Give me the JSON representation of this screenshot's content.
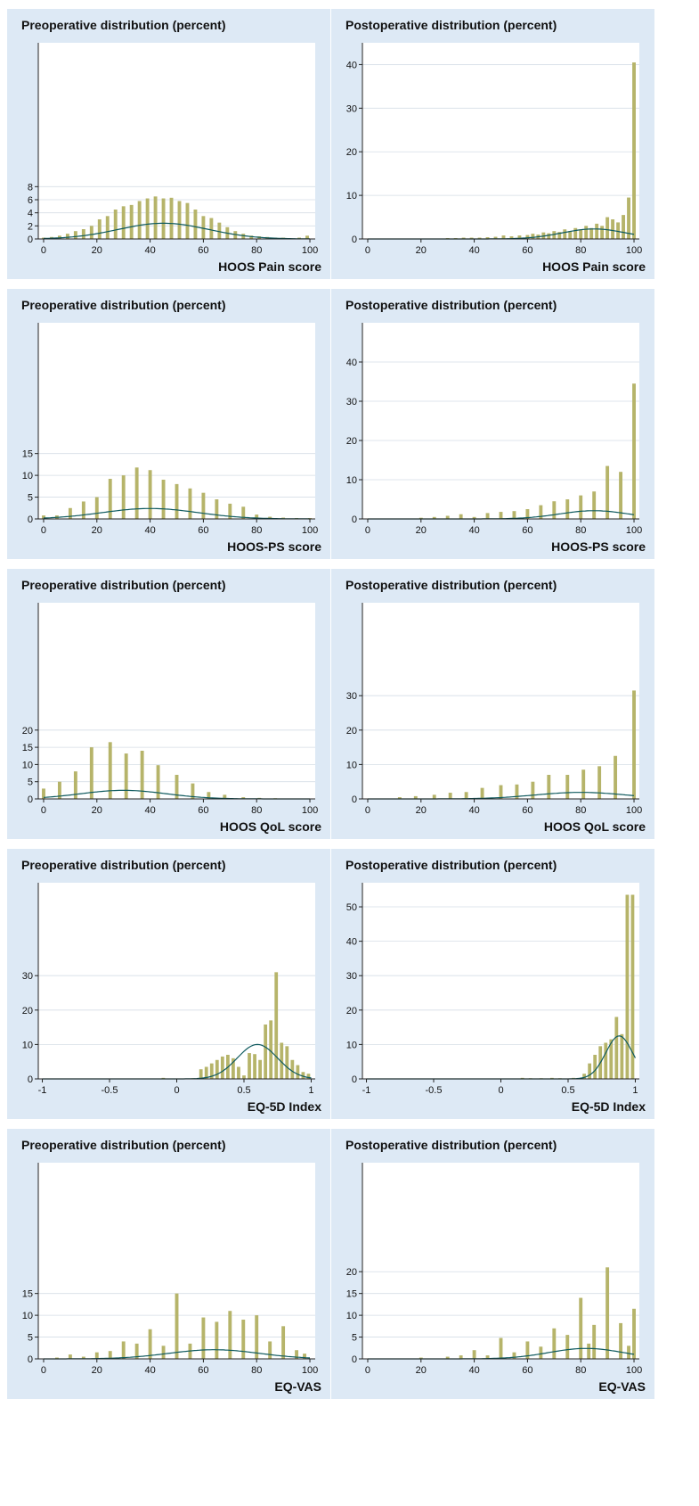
{
  "chart_data": [
    {
      "type": "bar",
      "title": "Preoperative distribution (percent)",
      "xlabel": "HOOS Pain score",
      "ylabel": "",
      "xlim": [
        -2,
        102
      ],
      "ylim": [
        0,
        30
      ],
      "yticks": [
        0,
        2,
        4,
        6,
        8
      ],
      "xticks": [
        0,
        20,
        40,
        60,
        80,
        100
      ],
      "bar_width": 1.3,
      "grid": true,
      "x": [
        0,
        3,
        6,
        9,
        12,
        15,
        18,
        21,
        24,
        27,
        30,
        33,
        36,
        39,
        42,
        45,
        48,
        51,
        54,
        57,
        60,
        63,
        66,
        69,
        72,
        75,
        78,
        81,
        84,
        87,
        90,
        93,
        96,
        99
      ],
      "values": [
        0.2,
        0.3,
        0.5,
        0.8,
        1.2,
        1.5,
        2.0,
        3.0,
        3.5,
        4.5,
        5.0,
        5.2,
        5.8,
        6.2,
        6.5,
        6.2,
        6.3,
        5.8,
        5.5,
        4.5,
        3.5,
        3.2,
        2.5,
        1.8,
        1.2,
        0.8,
        0.5,
        0.4,
        0.3,
        0.2,
        0.2,
        0.1,
        0.2,
        0.5
      ],
      "curve": {
        "type": "normal",
        "mean": 45,
        "sd": 17,
        "peak": 2.4,
        "color": "#0f5a5e"
      }
    },
    {
      "type": "bar",
      "title": "Postoperative distribution (percent)",
      "xlabel": "HOOS Pain score",
      "ylabel": "",
      "xlim": [
        -2,
        102
      ],
      "ylim": [
        0,
        45
      ],
      "yticks": [
        0,
        10,
        20,
        30,
        40
      ],
      "xticks": [
        0,
        20,
        40,
        60,
        80,
        100
      ],
      "bar_width": 1.3,
      "grid": true,
      "x": [
        30,
        33,
        36,
        39,
        42,
        45,
        48,
        51,
        54,
        57,
        60,
        62,
        64,
        66,
        68,
        70,
        72,
        74,
        76,
        78,
        80,
        82,
        84,
        86,
        88,
        90,
        92,
        94,
        96,
        98,
        100
      ],
      "values": [
        0.2,
        0.2,
        0.3,
        0.3,
        0.3,
        0.4,
        0.5,
        0.8,
        0.6,
        0.8,
        0.9,
        1.2,
        1.0,
        1.5,
        1.3,
        1.8,
        1.6,
        2.2,
        1.8,
        2.5,
        2.2,
        3.0,
        2.5,
        3.5,
        3.0,
        5.0,
        4.5,
        3.8,
        5.5,
        9.5,
        40.5
      ],
      "curve": {
        "type": "normal",
        "mean": 85,
        "sd": 12,
        "peak": 2.3,
        "color": "#0f5a5e"
      }
    },
    {
      "type": "bar",
      "title": "Preoperative distribution (percent)",
      "xlabel": "HOOS-PS score",
      "ylabel": "",
      "xlim": [
        -2,
        102
      ],
      "ylim": [
        0,
        45
      ],
      "yticks": [
        0,
        5,
        10,
        15
      ],
      "xticks": [
        0,
        20,
        40,
        60,
        80,
        100
      ],
      "bar_width": 1.3,
      "grid": true,
      "x": [
        0,
        5,
        10,
        15,
        20,
        25,
        30,
        35,
        40,
        45,
        50,
        55,
        60,
        65,
        70,
        75,
        80,
        85,
        90,
        95,
        100
      ],
      "values": [
        0.8,
        0.8,
        2.5,
        4.0,
        5.0,
        9.2,
        10.0,
        11.8,
        11.2,
        9.0,
        8.0,
        7.0,
        6.0,
        4.5,
        3.5,
        2.8,
        1.0,
        0.5,
        0.3,
        0.2,
        0.2
      ],
      "curve": {
        "type": "normal",
        "mean": 40,
        "sd": 18,
        "peak": 2.4,
        "color": "#0f5a5e"
      }
    },
    {
      "type": "bar",
      "title": "Postoperative distribution (percent)",
      "xlabel": "HOOS-PS score",
      "ylabel": "",
      "xlim": [
        -2,
        102
      ],
      "ylim": [
        0,
        50
      ],
      "yticks": [
        0,
        10,
        20,
        30,
        40
      ],
      "xticks": [
        0,
        20,
        40,
        60,
        80,
        100
      ],
      "bar_width": 1.3,
      "grid": true,
      "x": [
        20,
        25,
        30,
        35,
        40,
        45,
        50,
        55,
        60,
        65,
        70,
        75,
        80,
        85,
        90,
        95,
        100
      ],
      "values": [
        0.3,
        0.5,
        0.8,
        1.2,
        0.5,
        1.5,
        1.8,
        2.0,
        2.5,
        3.5,
        4.5,
        5.0,
        6.0,
        7.0,
        13.5,
        12.0,
        34.5
      ],
      "curve": {
        "type": "normal",
        "mean": 85,
        "sd": 13,
        "peak": 2.1,
        "color": "#0f5a5e"
      }
    },
    {
      "type": "bar",
      "title": "Preoperative distribution (percent)",
      "xlabel": "HOOS QoL score",
      "ylabel": "",
      "xlim": [
        -2,
        102
      ],
      "ylim": [
        0,
        57
      ],
      "yticks": [
        0,
        5,
        10,
        15,
        20
      ],
      "xticks": [
        0,
        20,
        40,
        60,
        80,
        100
      ],
      "bar_width": 1.3,
      "grid": true,
      "x": [
        0,
        6,
        12,
        18,
        25,
        31,
        37,
        43,
        50,
        56,
        62,
        68,
        75,
        81,
        87,
        93,
        100
      ],
      "values": [
        3.0,
        5.0,
        8.0,
        15.0,
        16.5,
        13.2,
        14.0,
        9.8,
        7.0,
        4.5,
        2.0,
        1.2,
        0.5,
        0.3,
        0.2,
        0.1,
        0.1
      ],
      "curve": {
        "type": "normal",
        "mean": 30,
        "sd": 16,
        "peak": 2.5,
        "color": "#0f5a5e"
      }
    },
    {
      "type": "bar",
      "title": "Postoperative distribution (percent)",
      "xlabel": "HOOS QoL score",
      "ylabel": "",
      "xlim": [
        -2,
        102
      ],
      "ylim": [
        0,
        57
      ],
      "yticks": [
        0,
        10,
        20,
        30
      ],
      "xticks": [
        0,
        20,
        40,
        60,
        80,
        100
      ],
      "bar_width": 1.3,
      "grid": true,
      "x": [
        12,
        18,
        25,
        31,
        37,
        43,
        50,
        56,
        62,
        68,
        75,
        81,
        87,
        93,
        100
      ],
      "values": [
        0.5,
        0.8,
        1.2,
        1.8,
        2.0,
        3.2,
        4.0,
        4.2,
        5.0,
        7.0,
        7.0,
        8.5,
        9.5,
        12.5,
        31.5
      ],
      "curve": {
        "type": "normal",
        "mean": 80,
        "sd": 17,
        "peak": 1.9,
        "color": "#0f5a5e"
      }
    },
    {
      "type": "bar",
      "title": "Preoperative distribution (percent)",
      "xlabel": "EQ-5D Index",
      "ylabel": "",
      "xlim": [
        -1.03,
        1.03
      ],
      "ylim": [
        0,
        57
      ],
      "yticks": [
        0,
        10,
        20,
        30
      ],
      "xticks": [
        -1,
        -0.5,
        0,
        0.5,
        1
      ],
      "xticklabels": [
        "-1",
        "-0.5",
        "0",
        "0.5",
        "1"
      ],
      "bar_width": 0.025,
      "bar_step": 0.025,
      "grid": true,
      "x": [
        -0.1,
        0.12,
        0.18,
        0.22,
        0.26,
        0.3,
        0.34,
        0.38,
        0.42,
        0.46,
        0.5,
        0.54,
        0.58,
        0.62,
        0.66,
        0.7,
        0.74,
        0.78,
        0.82,
        0.86,
        0.9,
        0.94,
        0.98
      ],
      "values": [
        0.3,
        0.2,
        2.8,
        3.5,
        4.5,
        5.5,
        6.5,
        7.0,
        6.0,
        3.5,
        1.0,
        7.5,
        7.2,
        5.5,
        15.8,
        17.0,
        31.0,
        10.5,
        9.5,
        5.5,
        4.0,
        2.0,
        1.5
      ],
      "curve": {
        "type": "normal",
        "mean": 0.6,
        "sd": 0.15,
        "peak": 10.0,
        "color": "#0f5a5e"
      }
    },
    {
      "type": "bar",
      "title": "Postoperative distribution (percent)",
      "xlabel": "EQ-5D Index",
      "ylabel": "",
      "xlim": [
        -1.03,
        1.03
      ],
      "ylim": [
        0,
        57
      ],
      "yticks": [
        0,
        10,
        20,
        30,
        40,
        50
      ],
      "xticks": [
        -1,
        -0.5,
        0,
        0.5,
        1
      ],
      "xticklabels": [
        "-1",
        "-0.5",
        "0",
        "0.5",
        "1"
      ],
      "bar_width": 0.025,
      "bar_step": 0.025,
      "grid": true,
      "x": [
        0.16,
        0.22,
        0.3,
        0.38,
        0.44,
        0.54,
        0.62,
        0.66,
        0.7,
        0.74,
        0.78,
        0.82,
        0.86,
        0.9,
        0.94,
        0.98
      ],
      "values": [
        0.3,
        0.2,
        0.2,
        0.3,
        0.2,
        0.3,
        1.5,
        4.5,
        7.0,
        9.5,
        10.5,
        11.5,
        18.0,
        13.0,
        53.5,
        53.5
      ],
      "curve": {
        "type": "normal",
        "mean": 0.88,
        "sd": 0.1,
        "peak": 12.5,
        "color": "#0f5a5e"
      }
    },
    {
      "type": "bar",
      "title": "Preoperative distribution (percent)",
      "xlabel": "EQ-VAS",
      "ylabel": "",
      "xlim": [
        -2,
        102
      ],
      "ylim": [
        0,
        45
      ],
      "yticks": [
        0,
        5,
        10,
        15
      ],
      "xticks": [
        0,
        20,
        40,
        60,
        80,
        100
      ],
      "bar_width": 1.3,
      "grid": true,
      "x": [
        5,
        10,
        15,
        20,
        25,
        30,
        35,
        40,
        45,
        50,
        55,
        60,
        65,
        70,
        75,
        80,
        85,
        90,
        95,
        98
      ],
      "values": [
        0.3,
        1.0,
        0.5,
        1.5,
        1.8,
        4.0,
        3.5,
        6.8,
        3.0,
        15.0,
        3.5,
        9.5,
        8.5,
        11.0,
        9.0,
        10.0,
        4.0,
        7.5,
        2.0,
        1.2
      ],
      "curve": {
        "type": "normal",
        "mean": 64,
        "sd": 17,
        "peak": 2.1,
        "color": "#0f5a5e"
      }
    },
    {
      "type": "bar",
      "title": "Postoperative distribution (percent)",
      "xlabel": "EQ-VAS",
      "ylabel": "",
      "xlim": [
        -2,
        102
      ],
      "ylim": [
        0,
        45
      ],
      "yticks": [
        0,
        5,
        10,
        15,
        20
      ],
      "xticks": [
        0,
        20,
        40,
        60,
        80,
        100
      ],
      "bar_width": 1.3,
      "grid": true,
      "x": [
        20,
        30,
        35,
        40,
        45,
        50,
        55,
        60,
        65,
        70,
        75,
        80,
        83,
        85,
        90,
        95,
        98,
        100
      ],
      "values": [
        0.3,
        0.5,
        0.8,
        2.0,
        0.8,
        4.8,
        1.5,
        4.0,
        2.8,
        7.0,
        5.5,
        14.0,
        3.5,
        7.8,
        21.0,
        8.2,
        3.0,
        11.5
      ],
      "curve": {
        "type": "normal",
        "mean": 82,
        "sd": 14,
        "peak": 2.4,
        "color": "#0f5a5e"
      }
    }
  ],
  "colors": {
    "bar": "#b6b46a",
    "panel_bg": "#dde9f5",
    "plot_bg": "#ffffff",
    "curve": "#0f5a5e",
    "grid": "#d5dde6"
  }
}
